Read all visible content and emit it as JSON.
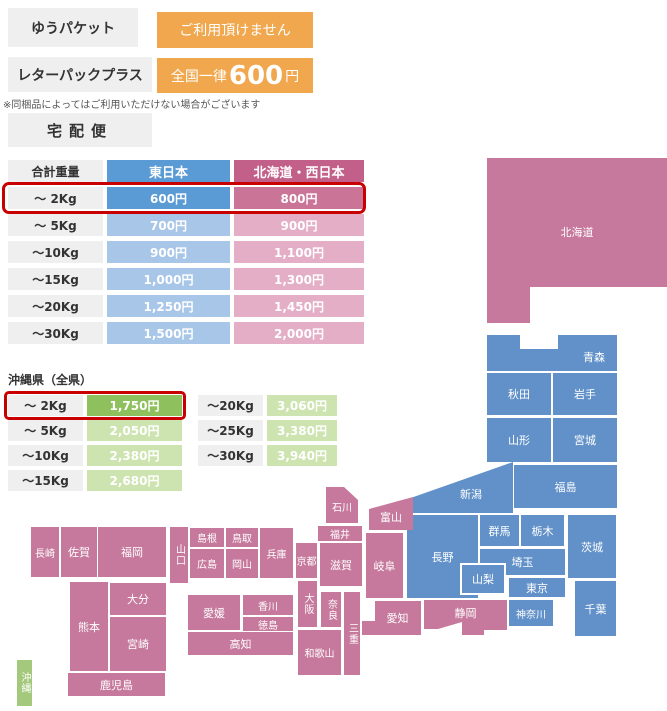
{
  "services": {
    "yupacket": {
      "label": "ゆうパケット",
      "value": "ご利用頂けません"
    },
    "letterpack": {
      "label": "レターパックプラス",
      "value_prefix": "全国一律",
      "value_amount": "600",
      "value_suffix": "円"
    },
    "note": "※同梱品によってはご利用いただけない場合がございます",
    "takuhaibin": "宅配便"
  },
  "rate_table": {
    "headers": {
      "weight": "合計重量",
      "east": "東日本",
      "west": "北海道・西日本"
    },
    "rows": [
      {
        "weight": "～ 2Kg",
        "east": "600円",
        "west": "800円",
        "highlight": true
      },
      {
        "weight": "～ 5Kg",
        "east": "700円",
        "west": "900円",
        "highlight": false
      },
      {
        "weight": "～10Kg",
        "east": "900円",
        "west": "1,100円",
        "highlight": false
      },
      {
        "weight": "～15Kg",
        "east": "1,000円",
        "west": "1,300円",
        "highlight": false
      },
      {
        "weight": "～20Kg",
        "east": "1,250円",
        "west": "1,450円",
        "highlight": false
      },
      {
        "weight": "～30Kg",
        "east": "1,500円",
        "west": "2,000円",
        "highlight": false
      }
    ]
  },
  "okinawa": {
    "title": "沖縄県（全県）",
    "left_rows": [
      {
        "weight": "～ 2Kg",
        "price": "1,750円",
        "highlight": true
      },
      {
        "weight": "～ 5Kg",
        "price": "2,050円",
        "highlight": false
      },
      {
        "weight": "～10Kg",
        "price": "2,380円",
        "highlight": false
      },
      {
        "weight": "～15Kg",
        "price": "2,680円",
        "highlight": false
      }
    ],
    "right_rows": [
      {
        "weight": "～20Kg",
        "price": "3,060円",
        "highlight": false
      },
      {
        "weight": "～25Kg",
        "price": "3,380円",
        "highlight": false
      },
      {
        "weight": "～30Kg",
        "price": "3,940円",
        "highlight": false
      }
    ]
  },
  "map": {
    "prefectures": [
      {
        "id": "hokkaido",
        "label": "北海道",
        "group": "west"
      },
      {
        "id": "aomori",
        "label": "青森",
        "group": "east"
      },
      {
        "id": "akita",
        "label": "秋田",
        "group": "east"
      },
      {
        "id": "iwate",
        "label": "岩手",
        "group": "east"
      },
      {
        "id": "yamagata",
        "label": "山形",
        "group": "east"
      },
      {
        "id": "miyagi",
        "label": "宮城",
        "group": "east"
      },
      {
        "id": "fukushima",
        "label": "福島",
        "group": "east"
      },
      {
        "id": "niigata",
        "label": "新潟",
        "group": "east"
      },
      {
        "id": "gunma",
        "label": "群馬",
        "group": "east"
      },
      {
        "id": "tochigi",
        "label": "栃木",
        "group": "east"
      },
      {
        "id": "ibaraki",
        "label": "茨城",
        "group": "east"
      },
      {
        "id": "saitama",
        "label": "埼玉",
        "group": "east"
      },
      {
        "id": "tokyo",
        "label": "東京",
        "group": "east"
      },
      {
        "id": "chiba",
        "label": "千葉",
        "group": "east"
      },
      {
        "id": "kanagawa",
        "label": "神奈川",
        "group": "east"
      },
      {
        "id": "nagano",
        "label": "長野",
        "group": "east"
      },
      {
        "id": "yamanashi",
        "label": "山梨",
        "group": "east"
      },
      {
        "id": "toyama",
        "label": "富山",
        "group": "west"
      },
      {
        "id": "ishikawa",
        "label": "石川",
        "group": "west"
      },
      {
        "id": "fukui",
        "label": "福井",
        "group": "west"
      },
      {
        "id": "gifu",
        "label": "岐阜",
        "group": "west"
      },
      {
        "id": "shizuoka",
        "label": "静岡",
        "group": "west"
      },
      {
        "id": "aichi",
        "label": "愛知",
        "group": "west"
      },
      {
        "id": "shiga",
        "label": "滋賀",
        "group": "west"
      },
      {
        "id": "kyoto",
        "label": "京都",
        "group": "west"
      },
      {
        "id": "osaka",
        "label": "大阪",
        "group": "west"
      },
      {
        "id": "nara",
        "label": "奈良",
        "group": "west"
      },
      {
        "id": "mie",
        "label": "三重",
        "group": "west"
      },
      {
        "id": "wakayama",
        "label": "和歌山",
        "group": "west"
      },
      {
        "id": "hyogo",
        "label": "兵庫",
        "group": "west"
      },
      {
        "id": "tottori",
        "label": "鳥取",
        "group": "west"
      },
      {
        "id": "shimane",
        "label": "島根",
        "group": "west"
      },
      {
        "id": "okayama",
        "label": "岡山",
        "group": "west"
      },
      {
        "id": "hiroshima",
        "label": "広島",
        "group": "west"
      },
      {
        "id": "yamaguchi",
        "label": "山口",
        "group": "west"
      },
      {
        "id": "kagawa",
        "label": "香川",
        "group": "west"
      },
      {
        "id": "tokushima",
        "label": "徳島",
        "group": "west"
      },
      {
        "id": "ehime",
        "label": "愛媛",
        "group": "west"
      },
      {
        "id": "kochi",
        "label": "高知",
        "group": "west"
      },
      {
        "id": "fukuoka",
        "label": "福岡",
        "group": "west"
      },
      {
        "id": "saga",
        "label": "佐賀",
        "group": "west"
      },
      {
        "id": "nagasaki",
        "label": "長崎",
        "group": "west"
      },
      {
        "id": "oita",
        "label": "大分",
        "group": "west"
      },
      {
        "id": "kumamoto",
        "label": "熊本",
        "group": "west"
      },
      {
        "id": "miyazaki",
        "label": "宮崎",
        "group": "west"
      },
      {
        "id": "kagoshima",
        "label": "鹿児島",
        "group": "west"
      },
      {
        "id": "okinawa",
        "label": "沖縄",
        "group": "oki"
      }
    ]
  },
  "colors": {
    "east_blue": "#6191c8",
    "west_pink": "#c6799c",
    "okinawa_green": "#a4c97c",
    "header_blue": "#5b9bd5",
    "header_pink": "#c2608a",
    "row_blue": "#a8c6e8",
    "row_pink": "#e3aec6",
    "green_dark": "#8fc05e",
    "green_light": "#cde4b0",
    "orange": "#f0a74e",
    "highlight_red": "#c80000",
    "gray_box": "#efefef"
  }
}
